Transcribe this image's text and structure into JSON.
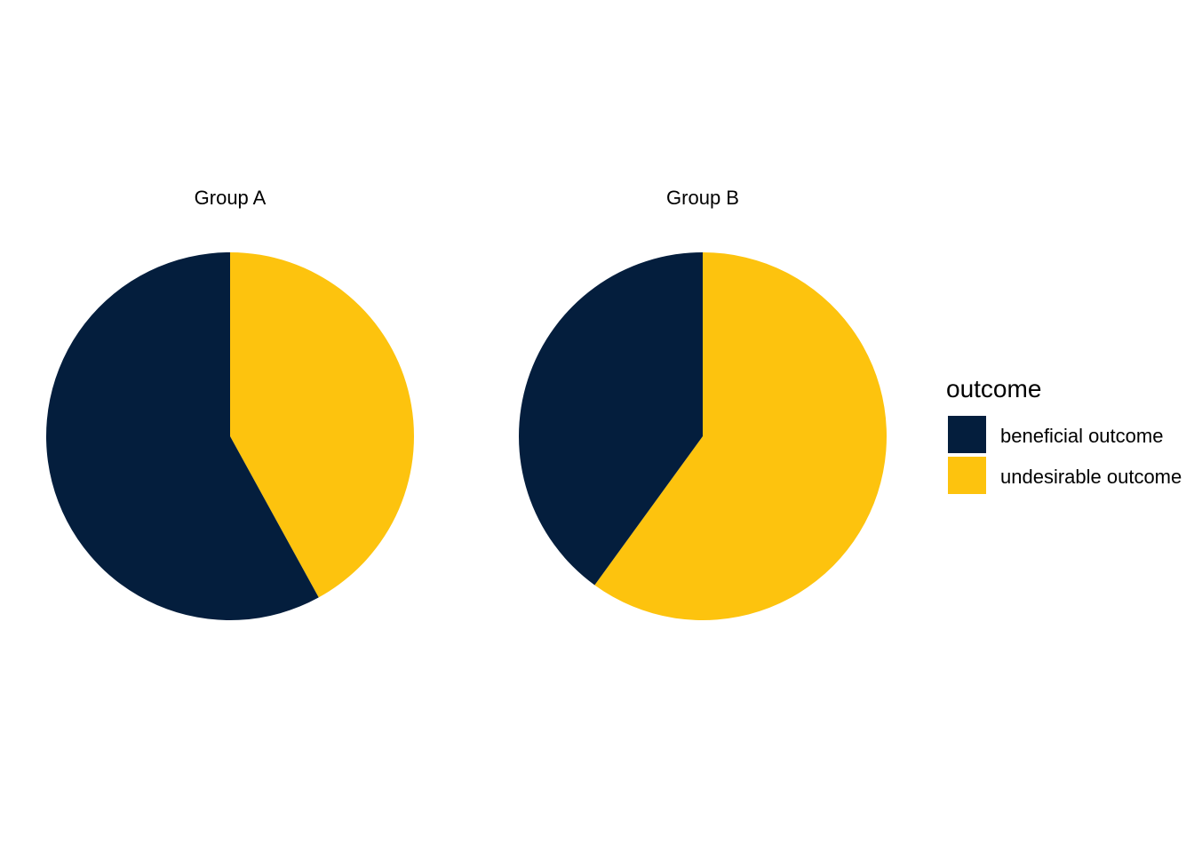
{
  "chart_data": [
    {
      "type": "pie",
      "title": "Group A",
      "categories": [
        "beneficial outcome",
        "undesirable outcome"
      ],
      "values": [
        58,
        42
      ],
      "colors": [
        "#041E3D",
        "#FDC30E"
      ]
    },
    {
      "type": "pie",
      "title": "Group B",
      "categories": [
        "beneficial outcome",
        "undesirable outcome"
      ],
      "values": [
        40,
        60
      ],
      "colors": [
        "#041E3D",
        "#FDC30E"
      ]
    }
  ],
  "legend": {
    "title": "outcome",
    "placement": "right",
    "items": [
      {
        "label": "beneficial outcome",
        "color": "#041E3D"
      },
      {
        "label": "undesirable outcome",
        "color": "#FDC30E"
      }
    ]
  }
}
